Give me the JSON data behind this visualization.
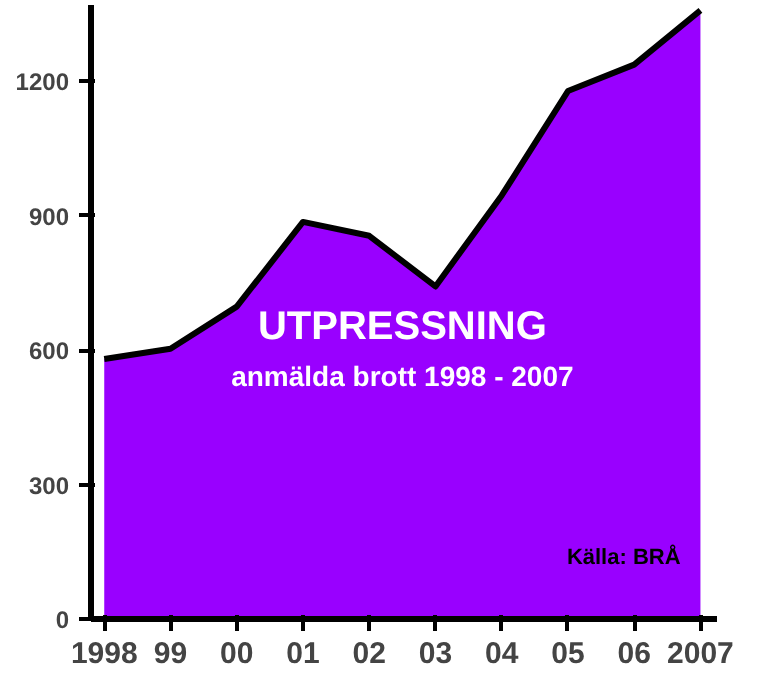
{
  "chart_data": {
    "type": "area",
    "title": "UTPRESSNING",
    "subtitle": "anmälda brott 1998 - 2007",
    "categories": [
      "1998",
      "99",
      "00",
      "01",
      "02",
      "03",
      "04",
      "05",
      "06",
      "2007"
    ],
    "series": [
      {
        "color": "#9900ff",
        "values": [
          580,
          603,
          697,
          886,
          855,
          742,
          945,
          1178,
          1237,
          1358
        ]
      }
    ],
    "ylim": [
      0,
      1370
    ],
    "yticks": [
      0,
      300,
      600,
      900,
      1200
    ],
    "grid": false,
    "annotations": [
      "Källa: BRÅ"
    ]
  }
}
